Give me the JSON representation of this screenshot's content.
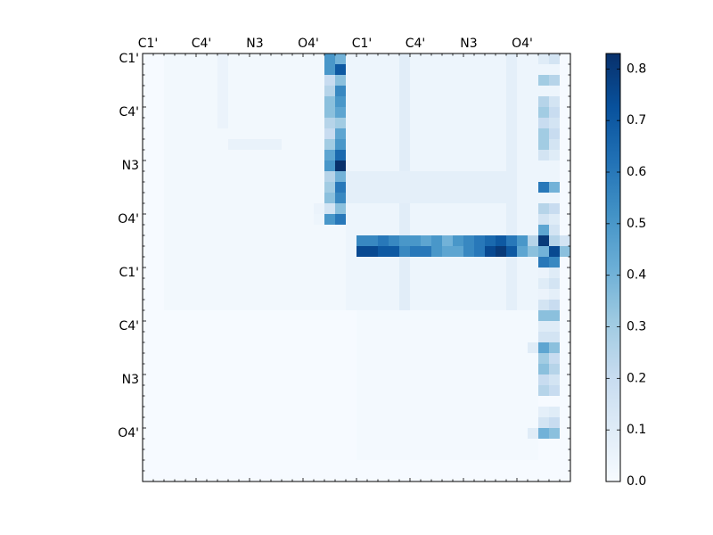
{
  "chart_data": {
    "type": "heatmap",
    "title": "",
    "xlabel": "",
    "ylabel": "",
    "x_tick_labels": [
      "C1'",
      "C4'",
      "N3",
      "O4'",
      "C1'",
      "C4'",
      "N3",
      "O4'"
    ],
    "y_tick_labels": [
      "C1'",
      "C4'",
      "N3",
      "O4'",
      "C1'",
      "C4'",
      "N3",
      "O4'"
    ],
    "tick_index_start": 0,
    "tick_index_step": 5,
    "n_rows": 40,
    "n_cols": 40,
    "colormap": "Blues",
    "color_low": "#f7fbff",
    "color_high": "#08306b",
    "vmin": 0.0,
    "vmax": 0.83,
    "colorbar": {
      "ticks": [
        0.0,
        0.1,
        0.2,
        0.3,
        0.4,
        0.5,
        0.6,
        0.7,
        0.8
      ],
      "tick_labels": [
        "0.0",
        "0.1",
        "0.2",
        "0.3",
        "0.4",
        "0.5",
        "0.6",
        "0.7",
        "0.8"
      ]
    },
    "background_value": 0.005,
    "blocks": [
      {
        "row_range": [
          0,
          23
        ],
        "col_range": [
          2,
          18
        ],
        "value": 0.02
      },
      {
        "row_range": [
          0,
          6
        ],
        "col_range": [
          7,
          7
        ],
        "value": 0.05
      },
      {
        "row_range": [
          8,
          8
        ],
        "col_range": [
          8,
          12
        ],
        "value": 0.06
      },
      {
        "row_range": [
          0,
          23
        ],
        "col_range": [
          19,
          38
        ],
        "value": 0.04
      },
      {
        "row_range": [
          0,
          23
        ],
        "col_range": [
          24,
          24
        ],
        "value": 0.09
      },
      {
        "row_range": [
          0,
          23
        ],
        "col_range": [
          34,
          34
        ],
        "value": 0.08
      },
      {
        "row_range": [
          11,
          13
        ],
        "col_range": [
          19,
          34
        ],
        "value": 0.08
      },
      {
        "row_range": [
          24,
          37
        ],
        "col_range": [
          20,
          36
        ],
        "value": 0.015
      }
    ],
    "cells": [
      {
        "row": 0,
        "col": 17,
        "value": 0.5
      },
      {
        "row": 0,
        "col": 18,
        "value": 0.4
      },
      {
        "row": 1,
        "col": 17,
        "value": 0.5
      },
      {
        "row": 1,
        "col": 18,
        "value": 0.7
      },
      {
        "row": 2,
        "col": 17,
        "value": 0.2
      },
      {
        "row": 2,
        "col": 18,
        "value": 0.35
      },
      {
        "row": 3,
        "col": 17,
        "value": 0.25
      },
      {
        "row": 3,
        "col": 18,
        "value": 0.55
      },
      {
        "row": 4,
        "col": 17,
        "value": 0.35
      },
      {
        "row": 4,
        "col": 18,
        "value": 0.5
      },
      {
        "row": 5,
        "col": 17,
        "value": 0.35
      },
      {
        "row": 5,
        "col": 18,
        "value": 0.45
      },
      {
        "row": 6,
        "col": 17,
        "value": 0.25
      },
      {
        "row": 6,
        "col": 18,
        "value": 0.3
      },
      {
        "row": 7,
        "col": 17,
        "value": 0.2
      },
      {
        "row": 7,
        "col": 18,
        "value": 0.45
      },
      {
        "row": 8,
        "col": 17,
        "value": 0.3
      },
      {
        "row": 8,
        "col": 18,
        "value": 0.5
      },
      {
        "row": 9,
        "col": 17,
        "value": 0.45
      },
      {
        "row": 9,
        "col": 18,
        "value": 0.65
      },
      {
        "row": 10,
        "col": 17,
        "value": 0.5
      },
      {
        "row": 10,
        "col": 18,
        "value": 0.83
      },
      {
        "row": 11,
        "col": 17,
        "value": 0.25
      },
      {
        "row": 11,
        "col": 18,
        "value": 0.4
      },
      {
        "row": 12,
        "col": 17,
        "value": 0.3
      },
      {
        "row": 12,
        "col": 18,
        "value": 0.6
      },
      {
        "row": 13,
        "col": 17,
        "value": 0.35
      },
      {
        "row": 13,
        "col": 18,
        "value": 0.55
      },
      {
        "row": 14,
        "col": 17,
        "value": 0.15
      },
      {
        "row": 14,
        "col": 18,
        "value": 0.35
      },
      {
        "row": 15,
        "col": 17,
        "value": 0.5
      },
      {
        "row": 15,
        "col": 18,
        "value": 0.6
      },
      {
        "row": 14,
        "col": 16,
        "value": 0.05
      },
      {
        "row": 15,
        "col": 16,
        "value": 0.04
      },
      {
        "row": 0,
        "col": 37,
        "value": 0.1
      },
      {
        "row": 0,
        "col": 38,
        "value": 0.15
      },
      {
        "row": 2,
        "col": 37,
        "value": 0.3
      },
      {
        "row": 2,
        "col": 38,
        "value": 0.25
      },
      {
        "row": 4,
        "col": 37,
        "value": 0.25
      },
      {
        "row": 4,
        "col": 38,
        "value": 0.15
      },
      {
        "row": 5,
        "col": 37,
        "value": 0.3
      },
      {
        "row": 5,
        "col": 38,
        "value": 0.2
      },
      {
        "row": 6,
        "col": 37,
        "value": 0.2
      },
      {
        "row": 6,
        "col": 38,
        "value": 0.15
      },
      {
        "row": 7,
        "col": 37,
        "value": 0.3
      },
      {
        "row": 7,
        "col": 38,
        "value": 0.2
      },
      {
        "row": 8,
        "col": 37,
        "value": 0.3
      },
      {
        "row": 8,
        "col": 38,
        "value": 0.15
      },
      {
        "row": 9,
        "col": 37,
        "value": 0.15
      },
      {
        "row": 9,
        "col": 38,
        "value": 0.1
      },
      {
        "row": 12,
        "col": 37,
        "value": 0.6
      },
      {
        "row": 12,
        "col": 38,
        "value": 0.4
      },
      {
        "row": 14,
        "col": 37,
        "value": 0.25
      },
      {
        "row": 14,
        "col": 38,
        "value": 0.2
      },
      {
        "row": 15,
        "col": 37,
        "value": 0.15
      },
      {
        "row": 15,
        "col": 38,
        "value": 0.1
      },
      {
        "row": 16,
        "col": 37,
        "value": 0.45
      },
      {
        "row": 16,
        "col": 38,
        "value": 0.15
      },
      {
        "row": 17,
        "col": 36,
        "value": 0.25
      },
      {
        "row": 17,
        "col": 37,
        "value": 0.8
      },
      {
        "row": 17,
        "col": 38,
        "value": 0.25
      },
      {
        "row": 17,
        "col": 39,
        "value": 0.15
      },
      {
        "row": 18,
        "col": 36,
        "value": 0.35
      },
      {
        "row": 18,
        "col": 37,
        "value": 0.4
      },
      {
        "row": 18,
        "col": 38,
        "value": 0.75
      },
      {
        "row": 18,
        "col": 39,
        "value": 0.35
      },
      {
        "row": 19,
        "col": 37,
        "value": 0.6
      },
      {
        "row": 19,
        "col": 38,
        "value": 0.55
      },
      {
        "row": 20,
        "col": 37,
        "value": 0.05
      },
      {
        "row": 20,
        "col": 38,
        "value": 0.1
      },
      {
        "row": 21,
        "col": 37,
        "value": 0.1
      },
      {
        "row": 21,
        "col": 38,
        "value": 0.15
      },
      {
        "row": 22,
        "col": 37,
        "value": 0.05
      },
      {
        "row": 22,
        "col": 38,
        "value": 0.08
      },
      {
        "row": 23,
        "col": 37,
        "value": 0.15
      },
      {
        "row": 23,
        "col": 38,
        "value": 0.2
      },
      {
        "row": 24,
        "col": 37,
        "value": 0.35
      },
      {
        "row": 24,
        "col": 38,
        "value": 0.35
      },
      {
        "row": 25,
        "col": 37,
        "value": 0.1
      },
      {
        "row": 25,
        "col": 38,
        "value": 0.1
      },
      {
        "row": 26,
        "col": 37,
        "value": 0.15
      },
      {
        "row": 26,
        "col": 38,
        "value": 0.15
      },
      {
        "row": 27,
        "col": 36,
        "value": 0.1
      },
      {
        "row": 27,
        "col": 37,
        "value": 0.45
      },
      {
        "row": 27,
        "col": 38,
        "value": 0.35
      },
      {
        "row": 28,
        "col": 37,
        "value": 0.3
      },
      {
        "row": 28,
        "col": 38,
        "value": 0.2
      },
      {
        "row": 29,
        "col": 37,
        "value": 0.35
      },
      {
        "row": 29,
        "col": 38,
        "value": 0.25
      },
      {
        "row": 30,
        "col": 37,
        "value": 0.2
      },
      {
        "row": 30,
        "col": 38,
        "value": 0.15
      },
      {
        "row": 31,
        "col": 37,
        "value": 0.25
      },
      {
        "row": 31,
        "col": 38,
        "value": 0.2
      },
      {
        "row": 33,
        "col": 37,
        "value": 0.08
      },
      {
        "row": 33,
        "col": 38,
        "value": 0.1
      },
      {
        "row": 34,
        "col": 37,
        "value": 0.15
      },
      {
        "row": 34,
        "col": 38,
        "value": 0.2
      },
      {
        "row": 35,
        "col": 36,
        "value": 0.1
      },
      {
        "row": 35,
        "col": 37,
        "value": 0.4
      },
      {
        "row": 35,
        "col": 38,
        "value": 0.35
      }
    ],
    "row_profiles": [
      {
        "row": 17,
        "col_start": 20,
        "values": [
          0.55,
          0.55,
          0.6,
          0.55,
          0.5,
          0.5,
          0.45,
          0.5,
          0.4,
          0.5,
          0.55,
          0.6,
          0.65,
          0.7,
          0.6,
          0.5,
          0.45,
          0.55,
          0.5
        ]
      },
      {
        "row": 18,
        "col_start": 20,
        "values": [
          0.75,
          0.75,
          0.7,
          0.7,
          0.55,
          0.6,
          0.6,
          0.5,
          0.45,
          0.45,
          0.55,
          0.6,
          0.75,
          0.8,
          0.7,
          0.45,
          0.55,
          0.55,
          0.45
        ]
      }
    ]
  }
}
